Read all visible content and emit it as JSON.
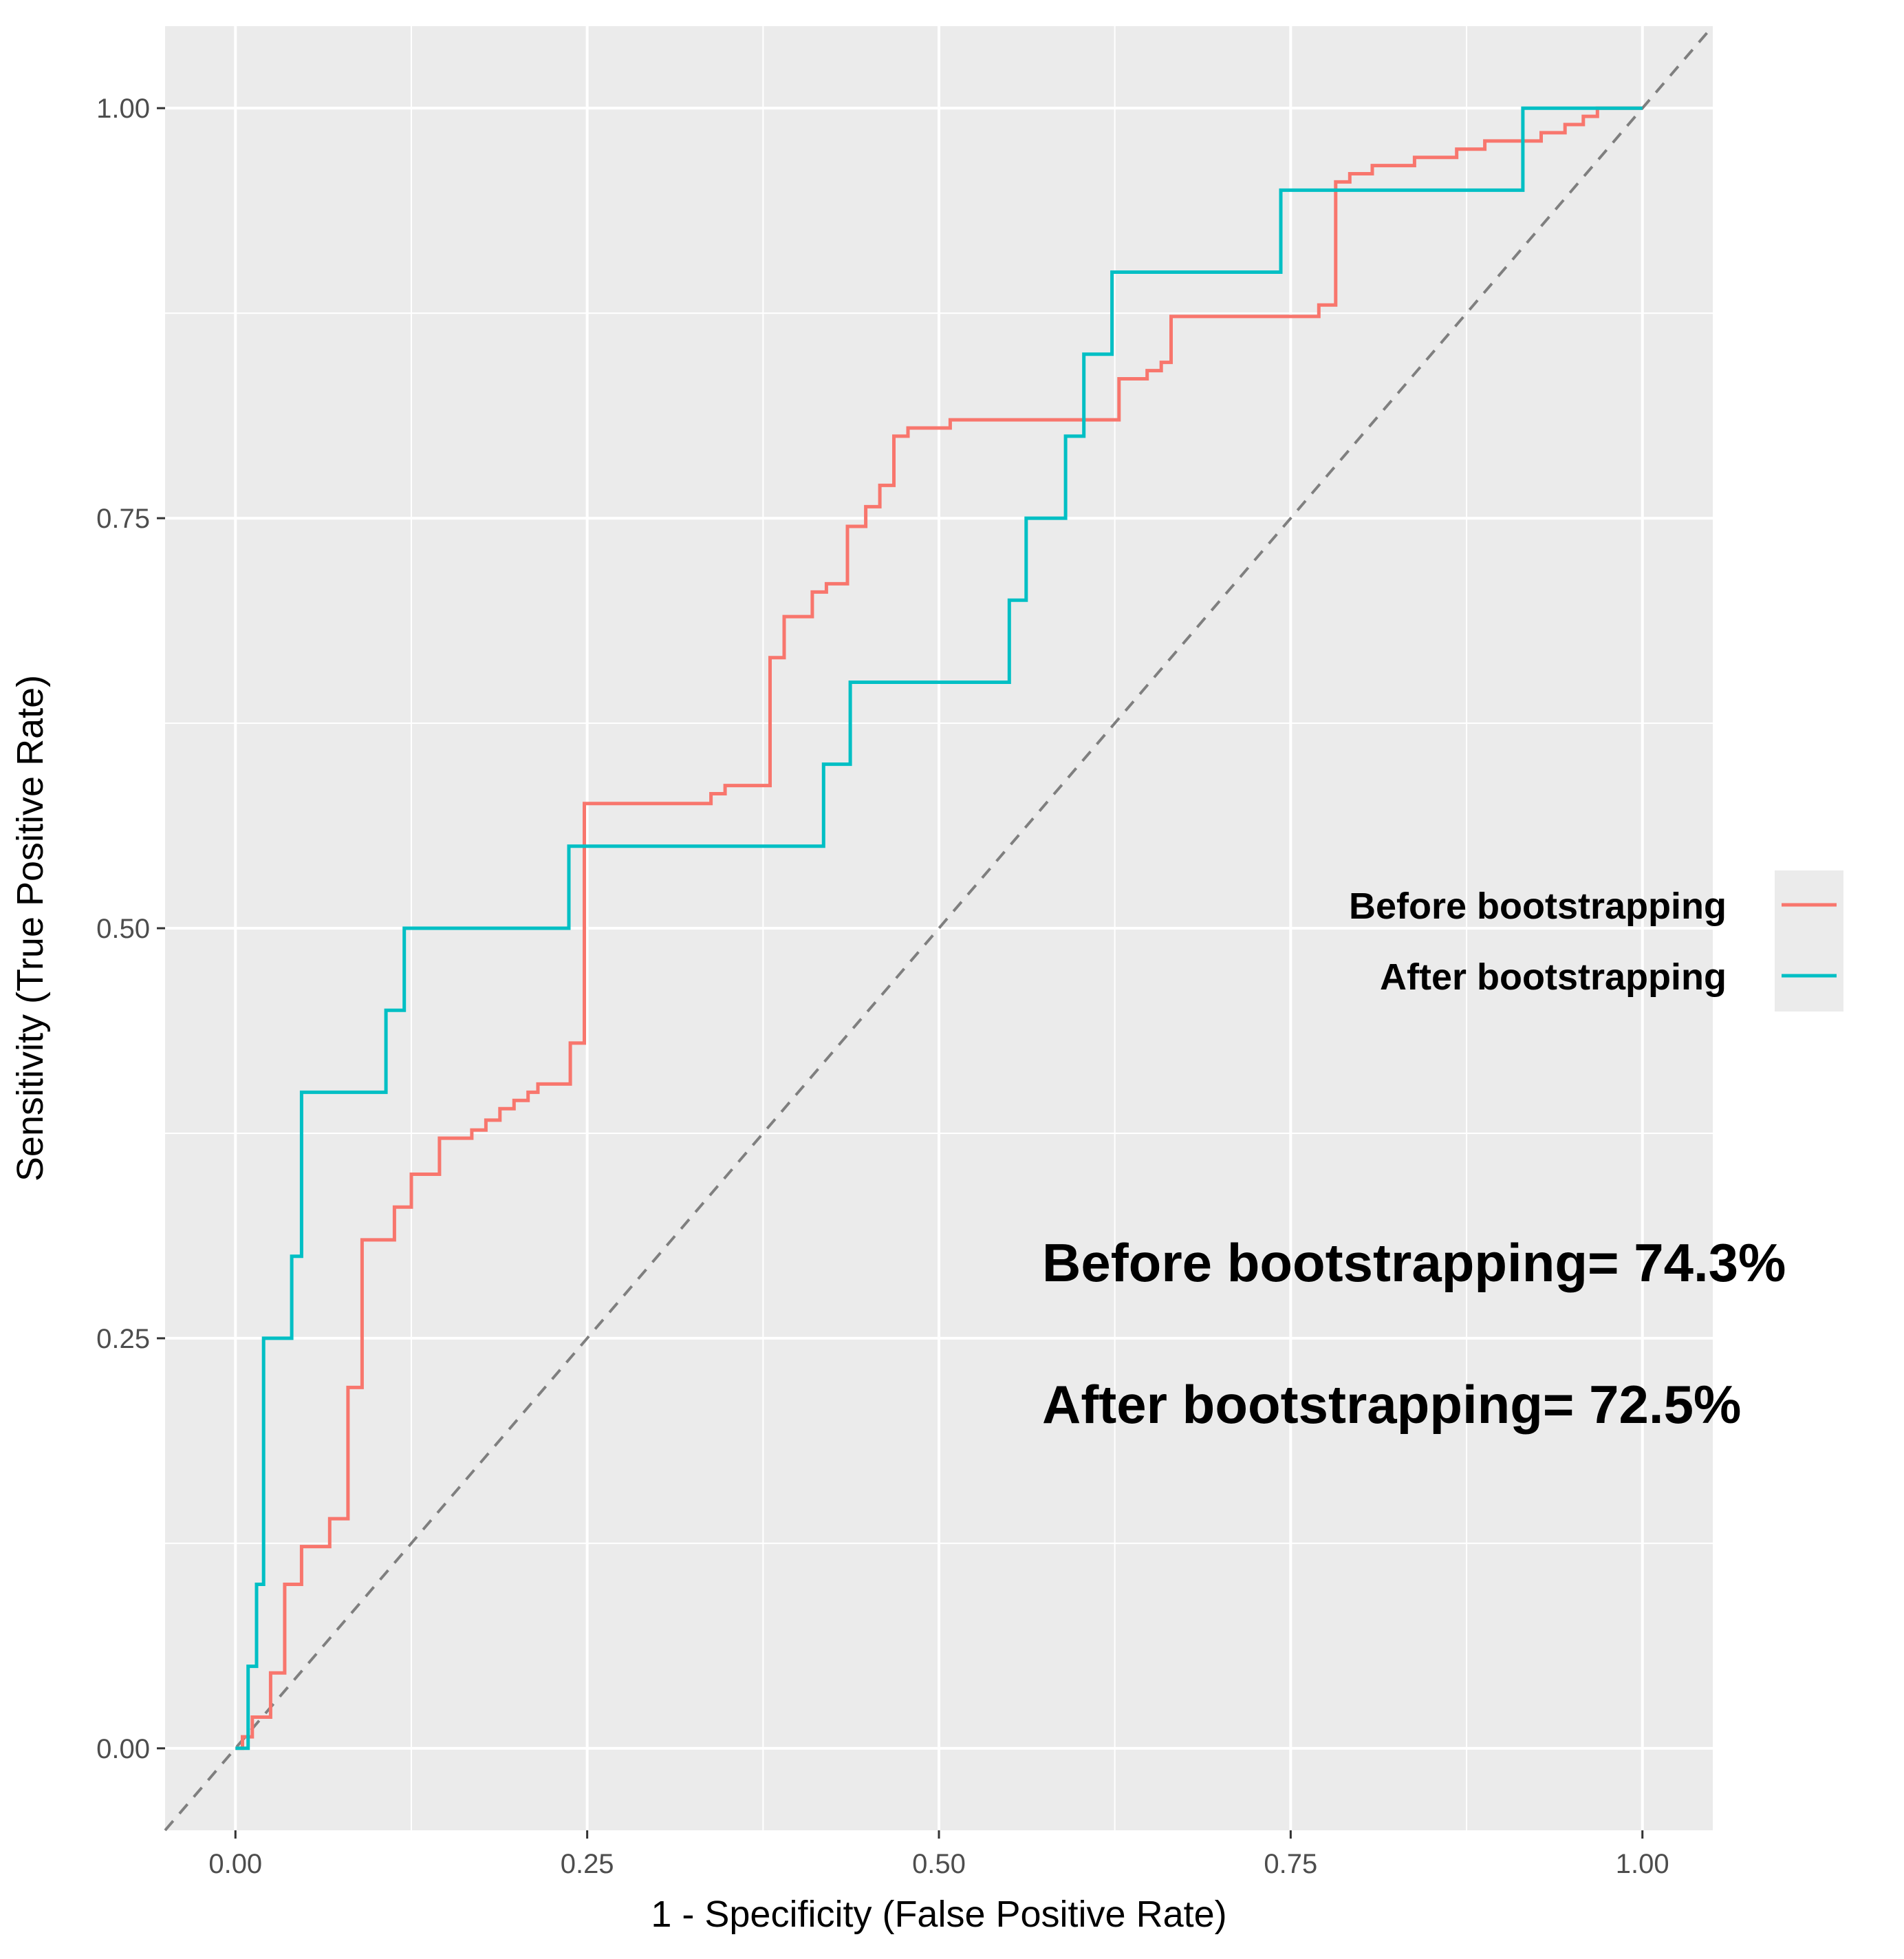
{
  "chart_data": {
    "type": "line",
    "title": "",
    "xlabel": "1 - Specificity (False Positive Rate)",
    "ylabel": "Sensitivity (True Positive Rate)",
    "xlim": [
      -0.05,
      1.05
    ],
    "ylim": [
      -0.05,
      1.05
    ],
    "x_ticks": [
      "0.00",
      "0.25",
      "0.50",
      "0.75",
      "1.00"
    ],
    "y_ticks": [
      "0.00",
      "0.25",
      "0.50",
      "0.75",
      "1.00"
    ],
    "grid": true,
    "legend_position": "right",
    "reference_line": {
      "name": "chance",
      "style": "dashed",
      "color": "#7f7f7f",
      "points": [
        [
          -0.05,
          -0.05
        ],
        [
          1.05,
          1.05
        ]
      ]
    },
    "series": [
      {
        "name": "Before bootstrapping",
        "color": "#F8766D",
        "points": [
          [
            0.0,
            0.0
          ],
          [
            0.005,
            0.0
          ],
          [
            0.005,
            0.007
          ],
          [
            0.012,
            0.007
          ],
          [
            0.012,
            0.019
          ],
          [
            0.025,
            0.019
          ],
          [
            0.025,
            0.046
          ],
          [
            0.035,
            0.046
          ],
          [
            0.035,
            0.1
          ],
          [
            0.047,
            0.1
          ],
          [
            0.047,
            0.123
          ],
          [
            0.067,
            0.123
          ],
          [
            0.067,
            0.14
          ],
          [
            0.08,
            0.14
          ],
          [
            0.08,
            0.22
          ],
          [
            0.09,
            0.22
          ],
          [
            0.09,
            0.31
          ],
          [
            0.113,
            0.31
          ],
          [
            0.113,
            0.33
          ],
          [
            0.125,
            0.33
          ],
          [
            0.125,
            0.35
          ],
          [
            0.145,
            0.35
          ],
          [
            0.145,
            0.372
          ],
          [
            0.168,
            0.372
          ],
          [
            0.168,
            0.377
          ],
          [
            0.178,
            0.377
          ],
          [
            0.178,
            0.383
          ],
          [
            0.188,
            0.383
          ],
          [
            0.188,
            0.39
          ],
          [
            0.198,
            0.39
          ],
          [
            0.198,
            0.395
          ],
          [
            0.208,
            0.395
          ],
          [
            0.208,
            0.4
          ],
          [
            0.215,
            0.4
          ],
          [
            0.215,
            0.405
          ],
          [
            0.238,
            0.405
          ],
          [
            0.238,
            0.43
          ],
          [
            0.248,
            0.43
          ],
          [
            0.248,
            0.576
          ],
          [
            0.338,
            0.576
          ],
          [
            0.338,
            0.582
          ],
          [
            0.348,
            0.582
          ],
          [
            0.348,
            0.587
          ],
          [
            0.38,
            0.587
          ],
          [
            0.38,
            0.665
          ],
          [
            0.39,
            0.665
          ],
          [
            0.39,
            0.69
          ],
          [
            0.41,
            0.69
          ],
          [
            0.41,
            0.705
          ],
          [
            0.42,
            0.705
          ],
          [
            0.42,
            0.71
          ],
          [
            0.435,
            0.71
          ],
          [
            0.435,
            0.745
          ],
          [
            0.448,
            0.745
          ],
          [
            0.448,
            0.757
          ],
          [
            0.458,
            0.757
          ],
          [
            0.458,
            0.77
          ],
          [
            0.468,
            0.77
          ],
          [
            0.468,
            0.8
          ],
          [
            0.478,
            0.8
          ],
          [
            0.478,
            0.805
          ],
          [
            0.508,
            0.805
          ],
          [
            0.508,
            0.81
          ],
          [
            0.628,
            0.81
          ],
          [
            0.628,
            0.835
          ],
          [
            0.648,
            0.835
          ],
          [
            0.648,
            0.84
          ],
          [
            0.658,
            0.84
          ],
          [
            0.658,
            0.845
          ],
          [
            0.665,
            0.845
          ],
          [
            0.665,
            0.873
          ],
          [
            0.77,
            0.873
          ],
          [
            0.77,
            0.88
          ],
          [
            0.782,
            0.88
          ],
          [
            0.782,
            0.955
          ],
          [
            0.792,
            0.955
          ],
          [
            0.792,
            0.96
          ],
          [
            0.808,
            0.96
          ],
          [
            0.808,
            0.965
          ],
          [
            0.838,
            0.965
          ],
          [
            0.838,
            0.97
          ],
          [
            0.868,
            0.97
          ],
          [
            0.868,
            0.975
          ],
          [
            0.888,
            0.975
          ],
          [
            0.888,
            0.98
          ],
          [
            0.928,
            0.98
          ],
          [
            0.928,
            0.985
          ],
          [
            0.945,
            0.985
          ],
          [
            0.945,
            0.99
          ],
          [
            0.958,
            0.99
          ],
          [
            0.958,
            0.995
          ],
          [
            0.968,
            0.995
          ],
          [
            0.968,
            1.0
          ],
          [
            1.0,
            1.0
          ]
        ]
      },
      {
        "name": "After bootstrapping",
        "color": "#00BFC4",
        "points": [
          [
            0.0,
            0.0
          ],
          [
            0.009,
            0.0
          ],
          [
            0.009,
            0.05
          ],
          [
            0.015,
            0.05
          ],
          [
            0.015,
            0.1
          ],
          [
            0.02,
            0.1
          ],
          [
            0.02,
            0.25
          ],
          [
            0.04,
            0.25
          ],
          [
            0.04,
            0.3
          ],
          [
            0.047,
            0.3
          ],
          [
            0.047,
            0.4
          ],
          [
            0.107,
            0.4
          ],
          [
            0.107,
            0.45
          ],
          [
            0.12,
            0.45
          ],
          [
            0.12,
            0.5
          ],
          [
            0.237,
            0.5
          ],
          [
            0.237,
            0.55
          ],
          [
            0.418,
            0.55
          ],
          [
            0.418,
            0.6
          ],
          [
            0.437,
            0.6
          ],
          [
            0.437,
            0.65
          ],
          [
            0.55,
            0.65
          ],
          [
            0.55,
            0.7
          ],
          [
            0.562,
            0.7
          ],
          [
            0.562,
            0.75
          ],
          [
            0.59,
            0.75
          ],
          [
            0.59,
            0.8
          ],
          [
            0.603,
            0.8
          ],
          [
            0.603,
            0.85
          ],
          [
            0.623,
            0.85
          ],
          [
            0.623,
            0.9
          ],
          [
            0.743,
            0.9
          ],
          [
            0.743,
            0.95
          ],
          [
            0.915,
            0.95
          ],
          [
            0.915,
            1.0
          ],
          [
            1.0,
            1.0
          ]
        ]
      }
    ],
    "legend": [
      "Before bootstrapping",
      "After bootstrapping"
    ],
    "annotations": [
      "Before bootstrapping= 74.3%",
      "After bootstrapping= 72.5%"
    ]
  }
}
